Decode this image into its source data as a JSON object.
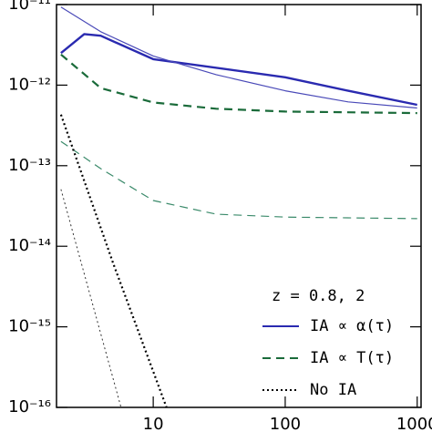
{
  "chart_data": {
    "type": "line",
    "xscale": "log",
    "yscale": "log",
    "xlim": [
      1.85,
      1070
    ],
    "ylim": [
      1e-16,
      1e-11
    ],
    "xticks": [
      10,
      100,
      1000
    ],
    "yticks": [
      {
        "value": 1e-16,
        "label": "10⁻¹⁶"
      },
      {
        "value": 1e-15,
        "label": "10⁻¹⁵"
      },
      {
        "value": 1e-14,
        "label": "10⁻¹⁴"
      },
      {
        "value": 1e-13,
        "label": "10⁻¹³"
      },
      {
        "value": 1e-12,
        "label": "10⁻¹²"
      },
      {
        "value": 1e-11,
        "label": "10⁻¹¹"
      }
    ],
    "series": [
      {
        "color": "#2a2ab0",
        "width": 2.4,
        "dash": "none",
        "x": [
          2,
          3,
          4,
          10,
          100,
          300,
          1000
        ],
        "values": [
          2.5e-12,
          4.3e-12,
          4.1e-12,
          2.1e-12,
          1.25e-12,
          8.5e-13,
          5.7e-13
        ]
      },
      {
        "color": "#4a4ab8",
        "width": 1.2,
        "dash": "none",
        "x": [
          2,
          4,
          10,
          30,
          100,
          300,
          1000
        ],
        "values": [
          9.3e-12,
          4.6e-12,
          2.3e-12,
          1.35e-12,
          8.5e-13,
          6.2e-13,
          5.2e-13
        ]
      },
      {
        "color": "#1a6b3a",
        "width": 2.2,
        "dash": "9,6",
        "x": [
          2,
          4,
          10,
          30,
          100,
          1000
        ],
        "values": [
          2.4e-12,
          9.2e-13,
          6.1e-13,
          5.1e-13,
          4.7e-13,
          4.5e-13
        ]
      },
      {
        "color": "#3a8a6a",
        "width": 1.2,
        "dash": "9,6",
        "x": [
          2,
          4,
          10,
          30,
          100,
          1000
        ],
        "values": [
          2e-13,
          9.2e-14,
          3.7e-14,
          2.5e-14,
          2.3e-14,
          2.2e-14
        ]
      },
      {
        "color": "#000000",
        "width": 2.2,
        "dash": "2,3",
        "x": [
          2,
          5,
          12.6
        ],
        "values": [
          4.3e-13,
          6e-15,
          1e-16
        ]
      },
      {
        "color": "#333333",
        "width": 1,
        "dash": "2,3",
        "x": [
          2,
          5.7
        ],
        "values": [
          5.1e-14,
          1e-16
        ]
      }
    ],
    "legend": {
      "position": "lower right",
      "title": "z = 0.8, 2",
      "entries": [
        {
          "label": "IA ∝ α(τ)",
          "color": "#2a2ab0",
          "dash": "none"
        },
        {
          "label": "IA ∝ T(τ)",
          "color": "#1a6b3a",
          "dash": "9,6"
        },
        {
          "label": "No IA",
          "color": "#000000",
          "dash": "2,3"
        }
      ]
    }
  }
}
